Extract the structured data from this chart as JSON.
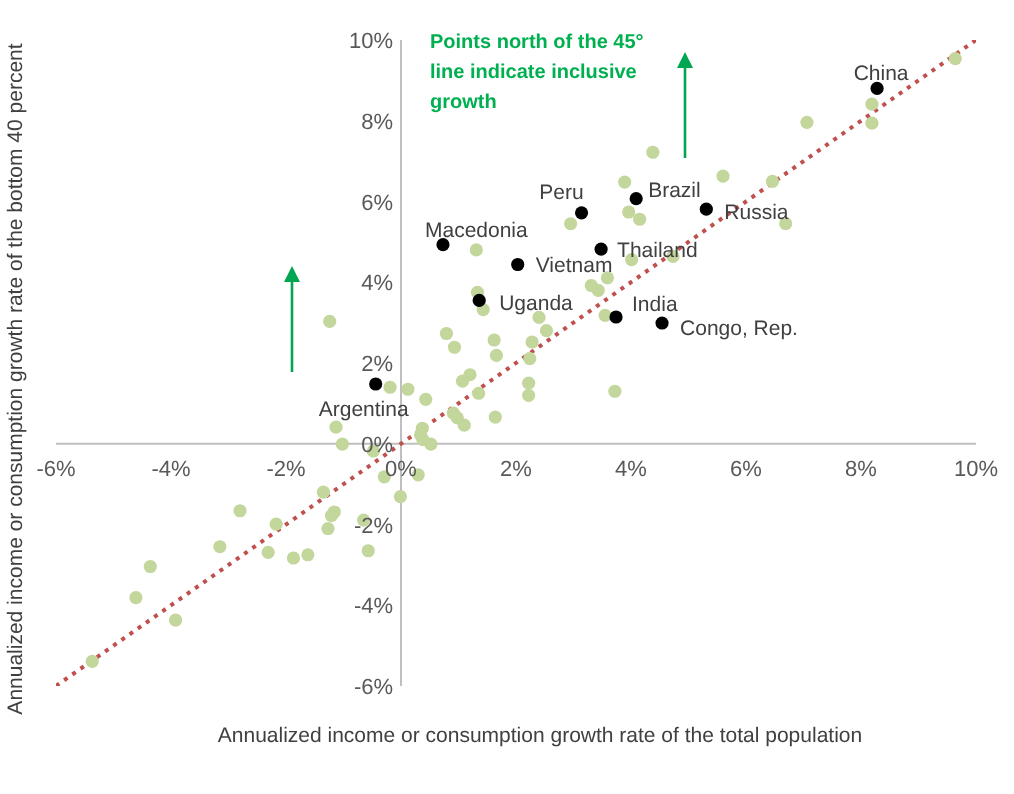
{
  "chart_data": {
    "type": "scatter",
    "xlabel": "Annualized income or consumption growth rate of the total population",
    "ylabel": "Annualized income or consumption growth rate of the bottom 40 percent",
    "xlim": [
      -6,
      10
    ],
    "ylim": [
      -6,
      10
    ],
    "xticks": [
      {
        "value": -6,
        "label": "-6%"
      },
      {
        "value": -4,
        "label": "-4%"
      },
      {
        "value": -2,
        "label": "-2%"
      },
      {
        "value": 0,
        "label": "0%"
      },
      {
        "value": 2,
        "label": "2%"
      },
      {
        "value": 4,
        "label": "4%"
      },
      {
        "value": 6,
        "label": "6%"
      },
      {
        "value": 8,
        "label": "8%"
      },
      {
        "value": 10,
        "label": "10%"
      }
    ],
    "yticks": [
      {
        "value": -6,
        "label": "-6%"
      },
      {
        "value": -4,
        "label": "-4%"
      },
      {
        "value": -2,
        "label": "-2%"
      },
      {
        "value": 0,
        "label": "0%"
      },
      {
        "value": 2,
        "label": "2%"
      },
      {
        "value": 4,
        "label": "4%"
      },
      {
        "value": 6,
        "label": "6%"
      },
      {
        "value": 8,
        "label": "8%"
      },
      {
        "value": 10,
        "label": "10%"
      }
    ],
    "grid": false,
    "legend": false,
    "marker": "circle",
    "series": [
      {
        "color": "#c3d69b",
        "x": [
          -1.24,
          1.31,
          1.33,
          1.43,
          0.79,
          0.93,
          1.62,
          1.66,
          2.28,
          2.24,
          1.2,
          1.07,
          -0.19,
          0.12,
          9.64,
          8.19,
          8.19,
          7.06,
          4.38,
          5.6,
          3.89,
          6.46,
          3.96,
          4.15,
          2.95,
          6.69,
          4.73,
          4.01,
          3.31,
          3.43,
          3.59,
          3.55,
          2.4,
          2.53,
          2.22,
          3.72,
          0.43,
          1.35,
          2.22,
          1.64,
          0.91,
          0.98,
          1.1,
          -1.13,
          -1.02,
          0.37,
          0.34,
          0.38,
          0.52,
          -0.48,
          -0.29,
          0.3,
          -0.01,
          -1.35,
          -1.16,
          -1.21,
          -1.27,
          -0.57,
          -0.65,
          -2.17,
          -2.31,
          -1.87,
          -1.62,
          -2.8,
          -3.15,
          -4.36,
          -4.61,
          -3.92,
          -5.37
        ],
        "values": [
          3.03,
          4.8,
          3.75,
          3.32,
          2.73,
          2.39,
          2.57,
          2.19,
          2.52,
          2.11,
          1.71,
          1.55,
          1.4,
          1.35,
          9.54,
          8.41,
          7.94,
          7.96,
          7.22,
          6.63,
          6.48,
          6.5,
          5.74,
          5.56,
          5.45,
          5.45,
          4.64,
          4.56,
          3.92,
          3.8,
          4.11,
          3.18,
          3.13,
          2.8,
          1.5,
          1.3,
          1.1,
          1.25,
          1.2,
          0.66,
          0.76,
          0.64,
          0.46,
          0.41,
          -0.01,
          0.38,
          0.22,
          0.1,
          -0.01,
          -0.18,
          -0.82,
          -0.77,
          -1.31,
          -1.2,
          -1.69,
          -1.78,
          -2.1,
          -2.65,
          -1.89,
          -1.99,
          -2.69,
          -2.83,
          -2.75,
          -1.66,
          -2.55,
          -3.04,
          -3.81,
          -4.37,
          -5.39
        ]
      },
      {
        "color": "#000000",
        "x": [
          8.28,
          4.09,
          3.14,
          5.31,
          3.48,
          2.03,
          3.74,
          4.54,
          0.73,
          1.36,
          -0.44
        ],
        "values": [
          8.8,
          6.07,
          5.72,
          5.81,
          4.82,
          4.44,
          3.14,
          2.99,
          4.93,
          3.55,
          1.48
        ]
      },
      {
        "type": "line",
        "color": "#c0504d",
        "line_style": "dotted",
        "marker": "none",
        "x": [
          -6,
          10
        ],
        "values": [
          -6,
          10
        ]
      }
    ],
    "annotations": [
      {
        "text": "China",
        "x": 8.28,
        "y": 8.8
      },
      {
        "text": "Brazil",
        "x": 4.09,
        "y": 6.07
      },
      {
        "text": "Peru",
        "x": 3.14,
        "y": 5.72
      },
      {
        "text": "Russia",
        "x": 5.31,
        "y": 5.81
      },
      {
        "text": "Thailand",
        "x": 3.48,
        "y": 4.82
      },
      {
        "text": "Vietnam",
        "x": 2.03,
        "y": 4.44
      },
      {
        "text": "India",
        "x": 3.74,
        "y": 3.14
      },
      {
        "text": "Congo, Rep.",
        "x": 4.54,
        "y": 2.99
      },
      {
        "text": "Macedonia",
        "x": 0.73,
        "y": 4.93
      },
      {
        "text": "Uganda",
        "x": 1.36,
        "y": 3.55
      },
      {
        "text": "Argentina",
        "x": -0.44,
        "y": 1.48
      },
      "Points north of the 45° line indicate inclusive growth"
    ]
  }
}
